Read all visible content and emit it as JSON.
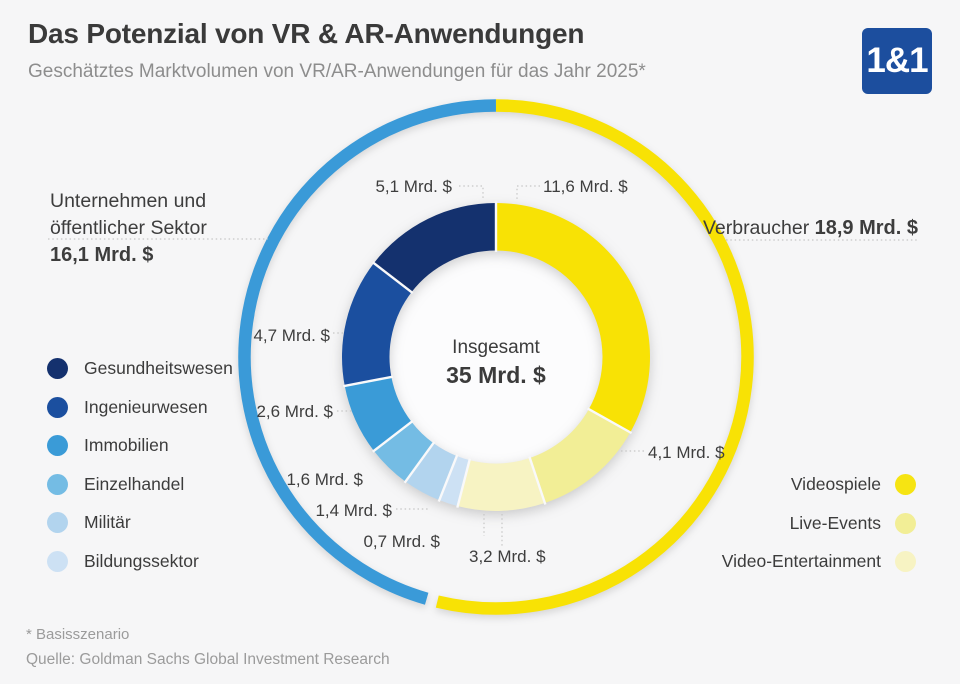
{
  "header": {
    "title": "Das Potenzial von VR & AR-Anwendungen",
    "subtitle": "Geschätztes Marktvolumen von VR/AR-Anwendungen für das Jahr 2025*",
    "logo_text": "1&1"
  },
  "chart_data": {
    "type": "pie",
    "donut": true,
    "title": "Das Potenzial von VR & AR-Anwendungen",
    "center_label": "Insgesamt",
    "center_value": "35 Mrd. $",
    "total": 35,
    "unit": "Mrd. $",
    "clockwise_from_top": true,
    "segments": [
      {
        "name": "Videospiele",
        "value": 11.6,
        "label": "11,6 Mrd. $",
        "color": "#f8e205",
        "group": "Verbraucher"
      },
      {
        "name": "Live-Events",
        "value": 4.1,
        "label": "4,1 Mrd. $",
        "color": "#f2ee96",
        "group": "Verbraucher"
      },
      {
        "name": "Video-Entertainment",
        "value": 3.2,
        "label": "3,2 Mrd. $",
        "color": "#f7f3c3",
        "group": "Verbraucher"
      },
      {
        "name": "Bildungssektor",
        "value": 0.7,
        "label": "0,7 Mrd. $",
        "color": "#cde1f4",
        "group": "Unternehmen und öffentlicher Sektor"
      },
      {
        "name": "Militär",
        "value": 1.4,
        "label": "1,4 Mrd. $",
        "color": "#b2d4ee",
        "group": "Unternehmen und öffentlicher Sektor"
      },
      {
        "name": "Einzelhandel",
        "value": 1.6,
        "label": "1,6 Mrd. $",
        "color": "#74bce4",
        "group": "Unternehmen und öffentlicher Sektor"
      },
      {
        "name": "Immobilien",
        "value": 2.6,
        "label": "2,6 Mrd. $",
        "color": "#3a9bd7",
        "group": "Unternehmen und öffentlicher Sektor"
      },
      {
        "name": "Ingenieurwesen",
        "value": 4.7,
        "label": "4,7 Mrd. $",
        "color": "#1b4f9f",
        "group": "Unternehmen und öffentlicher Sektor"
      },
      {
        "name": "Gesundheitswesen",
        "value": 5.1,
        "label": "5,1 Mrd. $",
        "color": "#14316e",
        "group": "Unternehmen und öffentlicher Sektor"
      }
    ],
    "groups": [
      {
        "name": "Verbraucher",
        "value": 18.9,
        "label_regular": "Verbraucher",
        "label_bold": "18,9 Mrd. $",
        "color": "#f8e205"
      },
      {
        "name": "Unternehmen und öffentlicher Sektor",
        "value": 16.1,
        "lines": [
          "Unternehmen und",
          "öffentlicher Sektor"
        ],
        "label_bold": "16,1 Mrd. $",
        "color": "#3a9ad8"
      }
    ],
    "legend_position": "left-and-right"
  },
  "legend_left": {
    "items": [
      {
        "label": "Gesundheitswesen",
        "color": "#14316e"
      },
      {
        "label": "Ingenieurwesen",
        "color": "#1b4f9f"
      },
      {
        "label": "Immobilien",
        "color": "#3a9bd7"
      },
      {
        "label": "Einzelhandel",
        "color": "#74bce4"
      },
      {
        "label": "Militär",
        "color": "#b2d4ee"
      },
      {
        "label": "Bildungssektor",
        "color": "#cde1f4"
      }
    ]
  },
  "legend_right": {
    "items": [
      {
        "label": "Videospiele",
        "color": "#f6e412"
      },
      {
        "label": "Live-Events",
        "color": "#f2ee96"
      },
      {
        "label": "Video-Entertainment",
        "color": "#f7f3c3"
      }
    ]
  },
  "colors": {
    "background": "#f6f6f7",
    "hole": "#fcfcfd",
    "ring_blue": "#3a9ad8",
    "ring_yellow": "#f8e205",
    "logo_blue": "#1c4e9e",
    "text_dark": "#3a3a3a",
    "text_gray": "#8d8d8d"
  },
  "footer": {
    "note": "* Basisszenario",
    "source": "Quelle: Goldman Sachs Global Investment Research"
  }
}
